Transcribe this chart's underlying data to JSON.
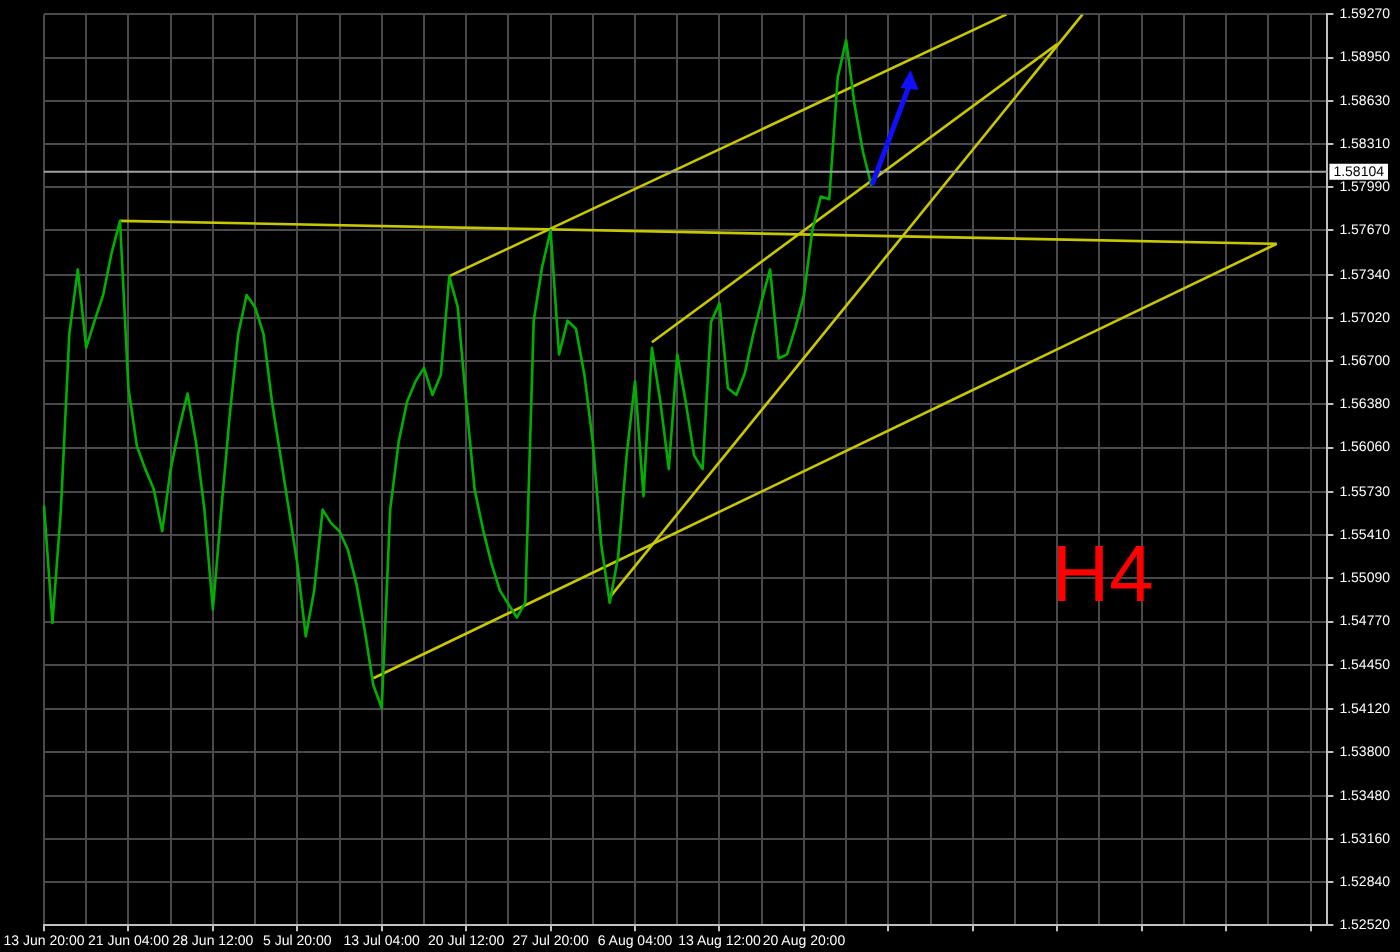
{
  "chart_data": {
    "type": "line",
    "grid": true,
    "annotations": [
      "H4"
    ],
    "categories": [
      "13 Jun 20:00",
      null,
      null,
      null,
      null,
      null,
      null,
      null,
      null,
      null,
      "21 Jun 04:00",
      null,
      null,
      null,
      null,
      null,
      null,
      null,
      null,
      null,
      "28 Jun 12:00",
      null,
      null,
      null,
      null,
      null,
      null,
      null,
      null,
      null,
      "5 Jul 20:00",
      null,
      null,
      null,
      null,
      null,
      null,
      null,
      null,
      null,
      "13 Jul 04:00",
      null,
      null,
      null,
      null,
      null,
      null,
      null,
      null,
      null,
      "20 Jul 12:00",
      null,
      null,
      null,
      null,
      null,
      null,
      null,
      null,
      null,
      "27 Jul 20:00",
      null,
      null,
      null,
      null,
      null,
      null,
      null,
      null,
      null,
      "6 Aug 04:00",
      null,
      null,
      null,
      null,
      null,
      null,
      null,
      null,
      null,
      "13 Aug 12:00",
      null,
      null,
      null,
      null,
      null,
      null,
      null,
      null,
      null,
      "20 Aug 20:00",
      null,
      null,
      null,
      null,
      null,
      null,
      null,
      null,
      null,
      null,
      null,
      null,
      null,
      null,
      null,
      null,
      null,
      null,
      null,
      null,
      null,
      null,
      null,
      null,
      null,
      null,
      null,
      null,
      null,
      null,
      null,
      null,
      null,
      null,
      null,
      null,
      null,
      null,
      null,
      null,
      null,
      null,
      null,
      null,
      null,
      null,
      null,
      null,
      null,
      null,
      null,
      null,
      null,
      null,
      null,
      null,
      null,
      null,
      null,
      null,
      null,
      null
    ],
    "ylim": [
      1.5252,
      1.5927
    ],
    "yticks": [
      {
        "value": 1.5252,
        "label": "1.52520"
      },
      {
        "value": 1.5284,
        "label": "1.52840"
      },
      {
        "value": 1.5316,
        "label": "1.53160"
      },
      {
        "value": 1.5348,
        "label": "1.53480"
      },
      {
        "value": 1.538,
        "label": "1.53800"
      },
      {
        "value": 1.5412,
        "label": "1.54120"
      },
      {
        "value": 1.5445,
        "label": "1.54450"
      },
      {
        "value": 1.5477,
        "label": "1.54770"
      },
      {
        "value": 1.5509,
        "label": "1.55090"
      },
      {
        "value": 1.5541,
        "label": "1.55410"
      },
      {
        "value": 1.5573,
        "label": "1.55730"
      },
      {
        "value": 1.5606,
        "label": "1.56060"
      },
      {
        "value": 1.5638,
        "label": "1.56380"
      },
      {
        "value": 1.567,
        "label": "1.56700"
      },
      {
        "value": 1.5702,
        "label": "1.57020"
      },
      {
        "value": 1.5734,
        "label": "1.57340"
      },
      {
        "value": 1.5767,
        "label": "1.57670"
      },
      {
        "value": 1.5799,
        "label": "1.57990"
      },
      {
        "value": 1.5831,
        "label": "1.58310"
      },
      {
        "value": 1.5863,
        "label": "1.58630"
      },
      {
        "value": 1.5895,
        "label": "1.58950"
      },
      {
        "value": 1.5927,
        "label": "1.59270"
      }
    ],
    "ref_lines": [
      {
        "axis": "y",
        "value": 1.58104,
        "label": "1.58104",
        "color": "#a0a0a0"
      }
    ],
    "series": [
      {
        "color": "#00b000",
        "values": [
          1.5563,
          1.5476,
          1.556,
          1.569,
          1.5738,
          1.568,
          1.57,
          1.5719,
          1.575,
          1.5774,
          1.565,
          1.5607,
          1.559,
          1.5575,
          1.5544,
          1.559,
          1.562,
          1.5646,
          1.561,
          1.556,
          1.5486,
          1.556,
          1.563,
          1.569,
          1.5719,
          1.571,
          1.569,
          1.564,
          1.56,
          1.556,
          1.552,
          1.5466,
          1.55,
          1.556,
          1.555,
          1.5544,
          1.553,
          1.5505,
          1.547,
          1.543,
          1.5413,
          1.556,
          1.561,
          1.564,
          1.5655,
          1.5665,
          1.5645,
          1.566,
          1.5733,
          1.571,
          1.564,
          1.5575,
          1.5545,
          1.552,
          1.55,
          1.549,
          1.548,
          1.5491,
          1.57,
          1.574,
          1.5767,
          1.5675,
          1.57,
          1.5694,
          1.566,
          1.561,
          1.5534,
          1.5491,
          1.5525,
          1.56,
          1.5655,
          1.557,
          1.568,
          1.564,
          1.559,
          1.5675,
          1.564,
          1.56,
          1.559,
          1.5699,
          1.5713,
          1.565,
          1.5645,
          1.5661,
          1.569,
          1.5715,
          1.5738,
          1.5672,
          1.5675,
          1.5695,
          1.5719,
          1.5767,
          1.5792,
          1.579,
          1.588,
          1.5908,
          1.586,
          1.5825,
          1.58,
          null,
          null,
          null,
          null,
          null,
          null,
          null,
          null,
          null,
          null,
          null,
          null,
          null,
          null,
          null,
          null,
          null,
          null,
          null,
          null,
          null,
          null,
          null,
          null,
          null,
          null,
          null,
          null,
          null,
          null,
          null,
          null,
          null,
          null,
          null,
          null,
          null,
          null,
          null,
          null,
          null,
          null,
          null,
          null,
          null,
          null,
          null,
          null,
          null,
          null,
          null,
          null,
          null,
          null
        ]
      },
      {
        "color": "#c8c800",
        "values": [
          null,
          null,
          null,
          null,
          null,
          null,
          null,
          null,
          null,
          1.5774,
          null,
          null,
          null,
          null,
          null,
          null,
          null,
          null,
          null,
          null,
          null,
          null,
          null,
          null,
          null,
          null,
          null,
          null,
          null,
          null,
          null,
          null,
          null,
          null,
          null,
          null,
          null,
          null,
          null,
          null,
          null,
          null,
          null,
          null,
          null,
          null,
          null,
          null,
          null,
          null,
          null,
          null,
          null,
          null,
          null,
          null,
          null,
          null,
          null,
          null,
          null,
          null,
          null,
          null,
          null,
          null,
          null,
          null,
          null,
          null,
          null,
          null,
          null,
          null,
          null,
          null,
          null,
          null,
          null,
          null,
          null,
          null,
          null,
          null,
          null,
          null,
          null,
          null,
          null,
          null,
          null,
          null,
          null,
          null,
          null,
          null,
          null,
          null,
          null,
          null,
          null,
          null,
          null,
          null,
          null,
          null,
          null,
          null,
          null,
          null,
          null,
          null,
          null,
          null,
          null,
          null,
          null,
          null,
          null,
          null,
          null,
          null,
          null,
          null,
          null,
          null,
          null,
          null,
          null,
          null,
          null,
          null,
          null,
          null,
          null,
          null,
          null,
          null,
          null,
          null,
          null,
          null,
          null,
          null,
          null,
          null,
          1.5757,
          null,
          null,
          null,
          null,
          null,
          null
        ]
      },
      {
        "color": "#c8c800",
        "values": [
          null,
          null,
          null,
          null,
          null,
          null,
          null,
          null,
          null,
          null,
          null,
          null,
          null,
          null,
          null,
          null,
          null,
          null,
          null,
          null,
          null,
          null,
          null,
          null,
          null,
          null,
          null,
          null,
          null,
          null,
          null,
          null,
          null,
          null,
          null,
          null,
          null,
          null,
          null,
          null,
          null,
          null,
          null,
          null,
          null,
          null,
          null,
          null,
          1.5733,
          null,
          null,
          null,
          null,
          null,
          null,
          null,
          null,
          null,
          null,
          null,
          null,
          null,
          null,
          null,
          null,
          null,
          null,
          null,
          null,
          null,
          null,
          null,
          null,
          null,
          null,
          null,
          null,
          null,
          null,
          null,
          null,
          null,
          null,
          null,
          null,
          null,
          null,
          null,
          null,
          null,
          null,
          null,
          null,
          null,
          null,
          null,
          null,
          null,
          null,
          null,
          null,
          null,
          null,
          null,
          null,
          null,
          null,
          null,
          null,
          null,
          null,
          null,
          null,
          null,
          1.5927,
          null,
          null,
          null,
          null,
          null,
          null,
          null,
          null,
          null,
          null,
          null,
          null,
          null,
          null,
          null,
          null,
          null,
          null,
          null,
          null,
          null,
          null,
          null,
          null,
          null,
          null,
          null,
          null,
          null,
          null,
          null,
          null,
          null,
          null,
          null,
          null,
          null,
          null
        ]
      },
      {
        "color": "#c8c800",
        "values": [
          null,
          null,
          null,
          null,
          null,
          null,
          null,
          null,
          null,
          null,
          null,
          null,
          null,
          null,
          null,
          null,
          null,
          null,
          null,
          null,
          null,
          null,
          null,
          null,
          null,
          null,
          null,
          null,
          null,
          null,
          null,
          null,
          null,
          null,
          null,
          null,
          null,
          null,
          null,
          1.5435,
          null,
          null,
          null,
          null,
          null,
          null,
          null,
          null,
          null,
          null,
          null,
          null,
          null,
          null,
          null,
          null,
          null,
          null,
          null,
          null,
          null,
          null,
          null,
          null,
          null,
          null,
          null,
          null,
          null,
          null,
          null,
          null,
          null,
          null,
          null,
          null,
          null,
          null,
          null,
          null,
          null,
          null,
          null,
          null,
          null,
          null,
          null,
          null,
          null,
          null,
          null,
          null,
          null,
          null,
          null,
          null,
          null,
          null,
          null,
          null,
          null,
          null,
          null,
          null,
          null,
          null,
          null,
          null,
          null,
          null,
          null,
          null,
          null,
          null,
          null,
          null,
          null,
          null,
          null,
          null,
          null,
          null,
          null,
          null,
          null,
          null,
          null,
          null,
          null,
          null,
          null,
          null,
          null,
          null,
          null,
          null,
          null,
          null,
          null,
          null,
          null,
          null,
          null,
          null,
          null,
          null,
          1.5757,
          null,
          null,
          null,
          null,
          null,
          null
        ]
      },
      {
        "color": "#c8c800",
        "values": [
          null,
          null,
          null,
          null,
          null,
          null,
          null,
          null,
          null,
          null,
          null,
          null,
          null,
          null,
          null,
          null,
          null,
          null,
          null,
          null,
          null,
          null,
          null,
          null,
          null,
          null,
          null,
          null,
          null,
          null,
          null,
          null,
          null,
          null,
          null,
          null,
          null,
          null,
          null,
          null,
          null,
          null,
          null,
          null,
          null,
          null,
          null,
          null,
          null,
          null,
          null,
          null,
          null,
          null,
          null,
          null,
          null,
          null,
          null,
          null,
          null,
          null,
          null,
          null,
          null,
          null,
          null,
          1.5495,
          null,
          null,
          null,
          null,
          null,
          null,
          null,
          null,
          null,
          null,
          null,
          null,
          null,
          null,
          null,
          null,
          null,
          null,
          null,
          null,
          null,
          null,
          null,
          null,
          null,
          null,
          null,
          null,
          null,
          null,
          null,
          null,
          null,
          null,
          null,
          null,
          null,
          null,
          null,
          null,
          null,
          null,
          null,
          null,
          null,
          null,
          null,
          null,
          null,
          null,
          null,
          null,
          null,
          null,
          null,
          1.5927,
          null,
          null,
          null,
          null,
          null,
          null,
          null,
          null,
          null,
          null,
          null,
          null,
          null,
          null,
          null,
          null,
          null,
          null,
          null,
          null,
          null,
          null,
          null,
          null,
          null,
          null,
          null,
          null,
          null
        ]
      },
      {
        "color": "#c8c800",
        "values": [
          null,
          null,
          null,
          null,
          null,
          null,
          null,
          null,
          null,
          null,
          null,
          null,
          null,
          null,
          null,
          null,
          null,
          null,
          null,
          null,
          null,
          null,
          null,
          null,
          null,
          null,
          null,
          null,
          null,
          null,
          null,
          null,
          null,
          null,
          null,
          null,
          null,
          null,
          null,
          null,
          null,
          null,
          null,
          null,
          null,
          null,
          null,
          null,
          null,
          null,
          null,
          null,
          null,
          null,
          null,
          null,
          null,
          null,
          null,
          null,
          null,
          null,
          null,
          null,
          null,
          null,
          null,
          null,
          null,
          null,
          null,
          null,
          1.5684,
          null,
          null,
          null,
          null,
          null,
          null,
          null,
          null,
          null,
          null,
          null,
          null,
          null,
          null,
          null,
          null,
          null,
          null,
          null,
          null,
          null,
          null,
          null,
          null,
          null,
          null,
          null,
          null,
          null,
          null,
          null,
          null,
          null,
          null,
          null,
          null,
          null,
          null,
          null,
          null,
          null,
          null,
          null,
          null,
          null,
          null,
          null,
          1.5905,
          null,
          null,
          null,
          null,
          null,
          null,
          null,
          null,
          null,
          null,
          null,
          null,
          null,
          null,
          null,
          null,
          null,
          null,
          null,
          null,
          null,
          null,
          null,
          null,
          null,
          null,
          null,
          null,
          null,
          null,
          null,
          null
        ]
      }
    ]
  }
}
